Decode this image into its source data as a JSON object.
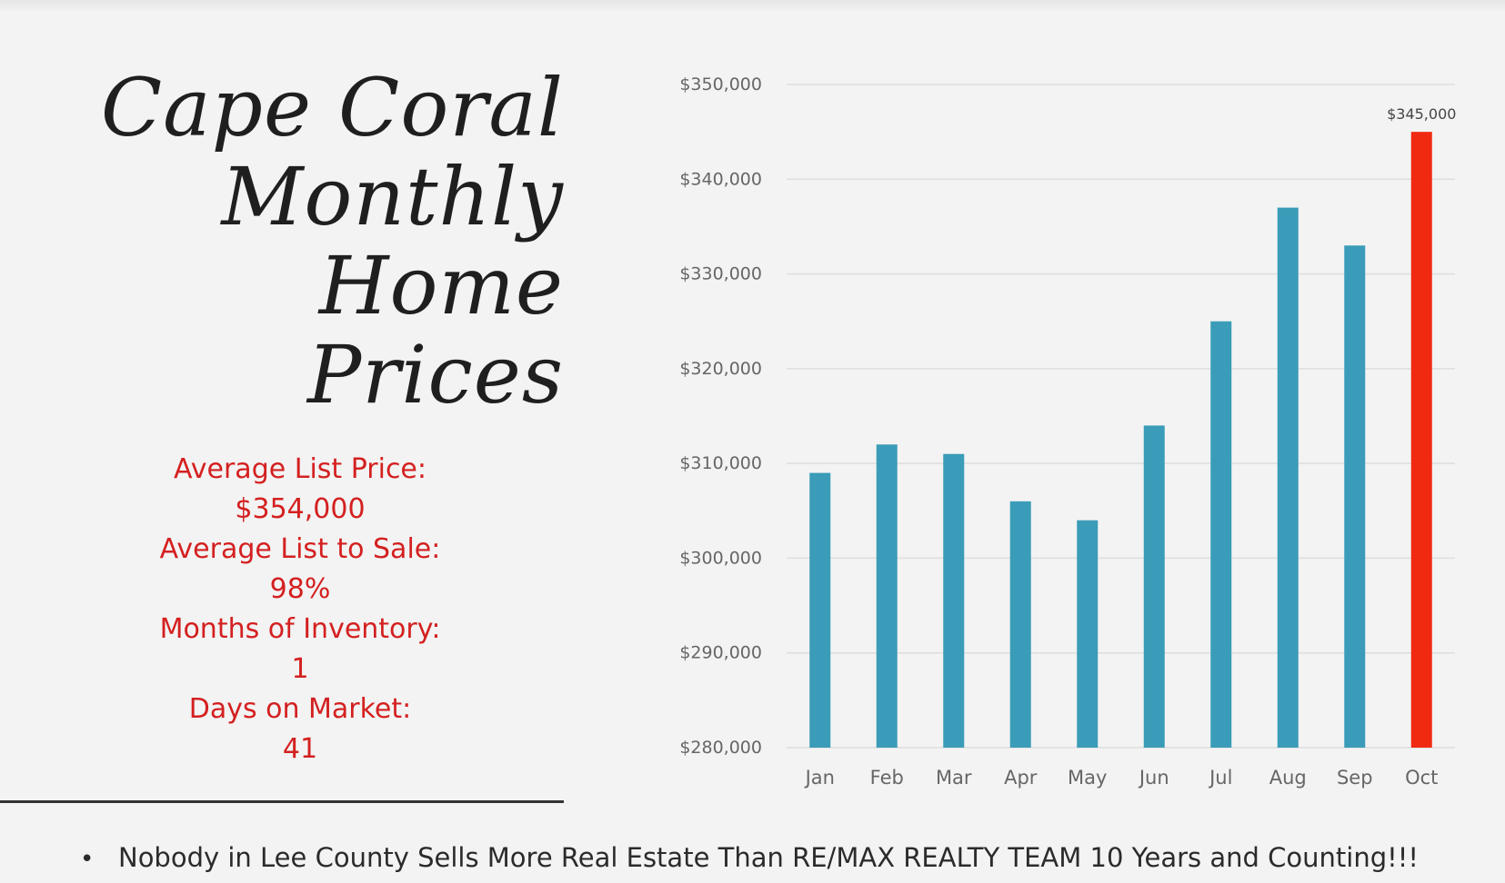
{
  "title_lines": [
    "Cape Coral",
    "Monthly",
    "Home Prices"
  ],
  "stats": [
    {
      "label": "Average List Price:",
      "value": "$354,000"
    },
    {
      "label": "Average List to Sale:",
      "value": "98%"
    },
    {
      "label": "Months of Inventory:",
      "value": "1"
    },
    {
      "label": "Days on Market:",
      "value": "41"
    }
  ],
  "footer": {
    "bullet": "•",
    "text": "Nobody in Lee County Sells More Real Estate Than RE/MAX REALTY TEAM 10 Years and Counting!!!"
  },
  "colors": {
    "bar": "#3a9cb8",
    "highlight_bar": "#f02a10",
    "stats_text": "#d42020",
    "grid": "#dedede",
    "axis_text": "#666666"
  },
  "chart_data": {
    "type": "bar",
    "categories": [
      "Jan",
      "Feb",
      "Mar",
      "Apr",
      "May",
      "Jun",
      "Jul",
      "Aug",
      "Sep",
      "Oct"
    ],
    "values": [
      309000,
      312000,
      311000,
      306000,
      304000,
      314000,
      325000,
      337000,
      333000,
      345000
    ],
    "ylim": [
      280000,
      350000
    ],
    "yticks": [
      280000,
      290000,
      300000,
      310000,
      320000,
      330000,
      340000,
      350000
    ],
    "ytick_labels": [
      "$280,000",
      "$290,000",
      "$300,000",
      "$310,000",
      "$320,000",
      "$330,000",
      "$340,000",
      "$350,000"
    ],
    "highlight_index": 9,
    "data_labels": [
      {
        "index": 9,
        "text": "$345,000"
      }
    ],
    "grid": true,
    "legend": "none",
    "xlabel": "",
    "ylabel": ""
  }
}
